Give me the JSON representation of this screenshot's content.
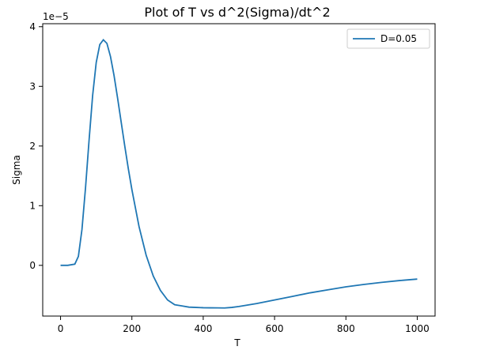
{
  "chart_data": {
    "type": "line",
    "title": "Plot of T vs d^2(Sigma)/dt^2",
    "xlabel": "T",
    "ylabel": "Sigma",
    "y_offset_label": "1e−5",
    "xlim": [
      -50,
      1050
    ],
    "ylim": [
      -0.85,
      4.05
    ],
    "x_ticks": [
      0,
      200,
      400,
      600,
      800,
      1000
    ],
    "x_tick_labels": [
      "0",
      "200",
      "400",
      "600",
      "800",
      "1000"
    ],
    "y_ticks": [
      0,
      1,
      2,
      3,
      4
    ],
    "y_tick_labels": [
      "0",
      "1",
      "2",
      "3",
      "4"
    ],
    "y_unit_scale": "1e-5",
    "grid": false,
    "legend_position": "top-right",
    "series": [
      {
        "name": "D=0.05",
        "color": "#1f77b4",
        "x": [
          0,
          20,
          40,
          50,
          60,
          70,
          80,
          90,
          100,
          110,
          120,
          130,
          140,
          150,
          160,
          170,
          180,
          190,
          200,
          220,
          240,
          260,
          280,
          300,
          320,
          340,
          360,
          380,
          400,
          420,
          440,
          460,
          480,
          500,
          550,
          600,
          650,
          700,
          750,
          800,
          850,
          900,
          950,
          1000
        ],
        "values": [
          0.0,
          0.0,
          0.02,
          0.15,
          0.6,
          1.3,
          2.1,
          2.85,
          3.4,
          3.7,
          3.78,
          3.72,
          3.5,
          3.18,
          2.8,
          2.4,
          2.0,
          1.62,
          1.27,
          0.65,
          0.17,
          -0.18,
          -0.42,
          -0.58,
          -0.66,
          -0.68,
          -0.7,
          -0.705,
          -0.71,
          -0.712,
          -0.713,
          -0.714,
          -0.705,
          -0.69,
          -0.64,
          -0.58,
          -0.52,
          -0.46,
          -0.41,
          -0.36,
          -0.32,
          -0.285,
          -0.255,
          -0.23
        ]
      }
    ]
  }
}
